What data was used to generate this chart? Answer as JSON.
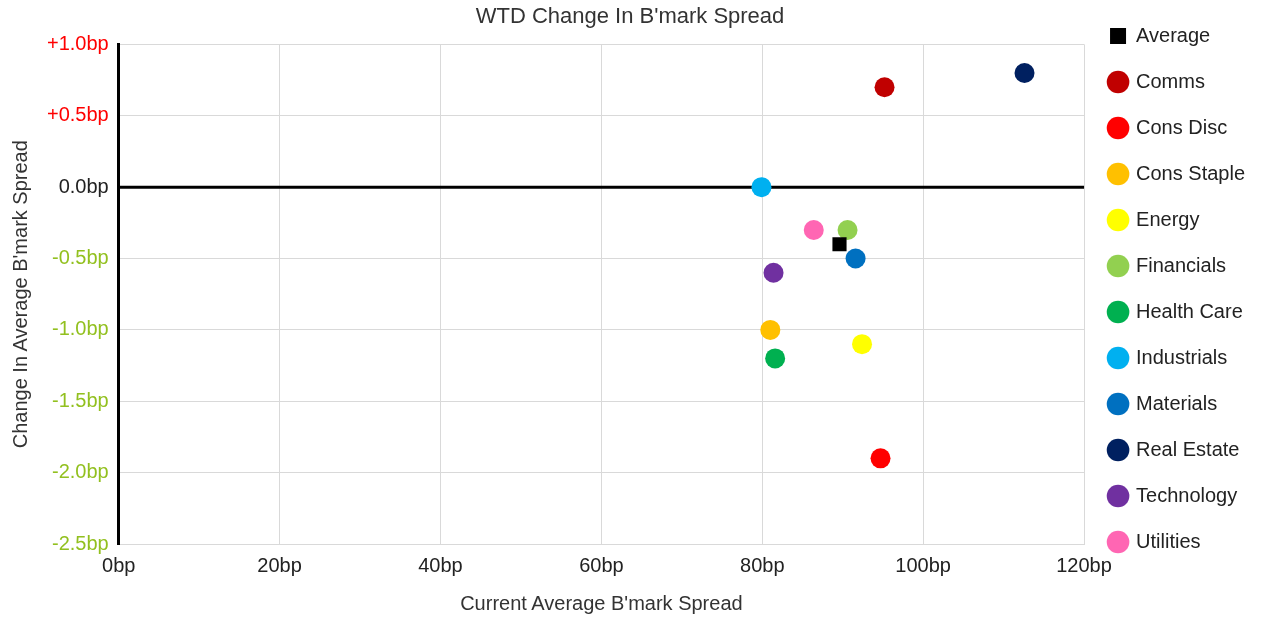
{
  "chart_data": {
    "type": "scatter",
    "title": "WTD Change In B'mark Spread",
    "xlabel": "Current Average B'mark Spread",
    "ylabel": "Change In Average B'mark Spread",
    "xlim": [
      0,
      120
    ],
    "xticks": [
      {
        "value": 0,
        "label": "0bp"
      },
      {
        "value": 20,
        "label": "20bp"
      },
      {
        "value": 40,
        "label": "40bp"
      },
      {
        "value": 60,
        "label": "60bp"
      },
      {
        "value": 80,
        "label": "80bp"
      },
      {
        "value": 100,
        "label": "100bp"
      },
      {
        "value": 120,
        "label": "120bp"
      }
    ],
    "ylim": [
      -2.5,
      1.0
    ],
    "yticks": [
      {
        "value": -2.5,
        "label": "-2.5bp"
      },
      {
        "value": -2.0,
        "label": "-2.0bp"
      },
      {
        "value": -1.5,
        "label": "-1.5bp"
      },
      {
        "value": -1.0,
        "label": "-1.0bp"
      },
      {
        "value": -0.5,
        "label": "-0.5bp"
      },
      {
        "value": 0,
        "label": "0.0bp"
      },
      {
        "value": 0.5,
        "label": "+0.5bp"
      },
      {
        "value": 1.0,
        "label": "+1.0bp"
      }
    ],
    "grid": true,
    "legend": "right",
    "marker": "circle",
    "ref_lines": [
      {
        "axis": "y",
        "value": 0,
        "color": "#000000"
      }
    ],
    "series": [
      {
        "name": "Average",
        "color": "#000000",
        "marker": "square",
        "x": [
          89.6
        ],
        "values": [
          -0.4
        ]
      },
      {
        "name": "Comms",
        "color": "#c00000",
        "x": [
          95.2
        ],
        "values": [
          0.7
        ]
      },
      {
        "name": "Cons Disc",
        "color": "#ff0000",
        "x": [
          94.7
        ],
        "values": [
          -1.9
        ]
      },
      {
        "name": "Cons Staple",
        "color": "#ffc000",
        "x": [
          81.0
        ],
        "values": [
          -1.0
        ]
      },
      {
        "name": "Energy",
        "color": "#ffff00",
        "x": [
          92.4
        ],
        "values": [
          -1.1
        ]
      },
      {
        "name": "Financials",
        "color": "#92d050",
        "x": [
          90.6
        ],
        "values": [
          -0.3
        ]
      },
      {
        "name": "Health Care",
        "color": "#00b050",
        "x": [
          81.6
        ],
        "values": [
          -1.2
        ]
      },
      {
        "name": "Industrials",
        "color": "#00b0f0",
        "x": [
          79.9
        ],
        "values": [
          0.0
        ]
      },
      {
        "name": "Materials",
        "color": "#0070c0",
        "x": [
          91.6
        ],
        "values": [
          -0.5
        ]
      },
      {
        "name": "Real Estate",
        "color": "#002060",
        "x": [
          112.6
        ],
        "values": [
          0.8
        ]
      },
      {
        "name": "Technology",
        "color": "#7030a0",
        "x": [
          81.4
        ],
        "values": [
          -0.6
        ]
      },
      {
        "name": "Utilities",
        "color": "#ff66b3",
        "x": [
          86.4
        ],
        "values": [
          -0.3
        ]
      }
    ]
  }
}
